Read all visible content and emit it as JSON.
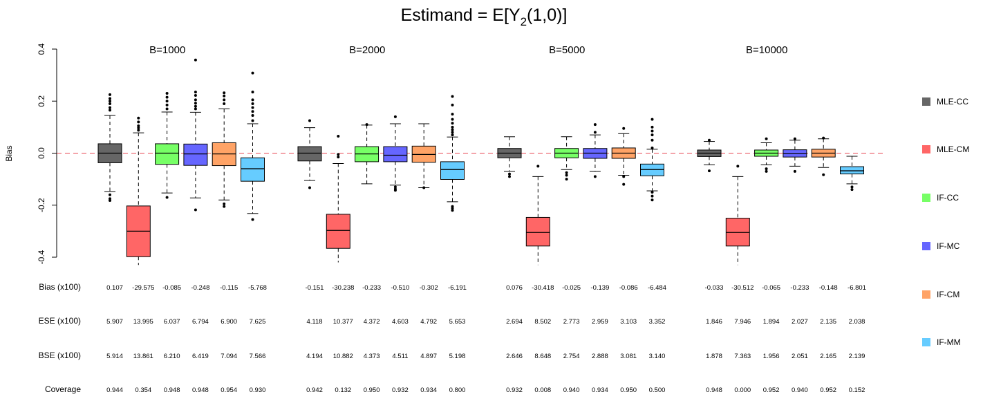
{
  "chart_data": {
    "type": "box",
    "title_main": "Estimand = E[Y",
    "title_sub": "2",
    "title_end": "(1,0)]",
    "ylabel": "Bias",
    "ylim": [
      -0.4,
      0.4
    ],
    "yticks": [
      "0.4",
      "0.2",
      "0.0",
      "-0.2",
      "-0.4"
    ],
    "reference_line": 0.0,
    "legend_position": "right",
    "methods": [
      {
        "name": "MLE-CC",
        "color": "#666666"
      },
      {
        "name": "MLE-CM",
        "color": "#FF6666"
      },
      {
        "name": "IF-CC",
        "color": "#77FF66"
      },
      {
        "name": "IF-MC",
        "color": "#6666FF"
      },
      {
        "name": "IF-CM",
        "color": "#FFA366"
      },
      {
        "name": "IF-MM",
        "color": "#66CCFF"
      }
    ],
    "groups": [
      {
        "label": "B=1000",
        "boxes": [
          {
            "q1": -0.037,
            "median": 0.0,
            "q3": 0.036,
            "wlo": -0.148,
            "whi": 0.145,
            "outliers": [
              0.165,
              0.175,
              0.19,
              0.2,
              0.21,
              0.225,
              -0.16,
              -0.175,
              -0.182
            ]
          },
          {
            "q1": -0.398,
            "median": -0.3,
            "q3": -0.203,
            "wlo": -0.43,
            "whi": 0.078,
            "outliers": [
              0.088,
              0.097,
              0.105,
              0.12,
              0.135
            ]
          },
          {
            "q1": -0.043,
            "median": 0.0,
            "q3": 0.036,
            "wlo": -0.153,
            "whi": 0.158,
            "outliers": [
              0.17,
              0.185,
              0.2,
              0.215,
              0.23,
              -0.17
            ]
          },
          {
            "q1": -0.047,
            "median": -0.003,
            "q3": 0.035,
            "wlo": -0.172,
            "whi": 0.157,
            "outliers": [
              0.17,
              0.18,
              0.192,
              0.205,
              0.222,
              0.235,
              0.358,
              -0.218
            ]
          },
          {
            "q1": -0.048,
            "median": -0.003,
            "q3": 0.04,
            "wlo": -0.18,
            "whi": 0.17,
            "outliers": [
              0.19,
              0.205,
              0.22,
              0.232,
              -0.195,
              -0.205
            ]
          },
          {
            "q1": -0.108,
            "median": -0.06,
            "q3": -0.018,
            "wlo": -0.232,
            "whi": 0.113,
            "outliers": [
              0.125,
              0.145,
              0.16,
              0.175,
              0.19,
              0.205,
              0.235,
              0.308,
              -0.255
            ]
          }
        ],
        "stats": {
          "bias": [
            "0.107",
            "-29.575",
            "-0.085",
            "-0.248",
            "-0.115",
            "-5.768"
          ],
          "ese": [
            "5.907",
            "13.995",
            "6.037",
            "6.794",
            "6.900",
            "7.625"
          ],
          "bse": [
            "5.914",
            "13.861",
            "6.210",
            "6.419",
            "7.094",
            "7.566"
          ],
          "coverage": [
            "0.944",
            "0.354",
            "0.948",
            "0.948",
            "0.954",
            "0.930"
          ]
        }
      },
      {
        "label": "B=2000",
        "boxes": [
          {
            "q1": -0.03,
            "median": 0.0,
            "q3": 0.025,
            "wlo": -0.105,
            "whi": 0.098,
            "outliers": [
              0.125,
              -0.133
            ]
          },
          {
            "q1": -0.366,
            "median": -0.297,
            "q3": -0.235,
            "wlo": -0.42,
            "whi": -0.04,
            "outliers": [
              -0.015,
              -0.005,
              0.065
            ]
          },
          {
            "q1": -0.033,
            "median": -0.003,
            "q3": 0.025,
            "wlo": -0.118,
            "whi": 0.108,
            "outliers": [
              0.11
            ]
          },
          {
            "q1": -0.033,
            "median": -0.008,
            "q3": 0.025,
            "wlo": -0.123,
            "whi": 0.113,
            "outliers": [
              0.14,
              -0.13,
              -0.138,
              -0.143
            ]
          },
          {
            "q1": -0.035,
            "median": -0.005,
            "q3": 0.027,
            "wlo": -0.133,
            "whi": 0.113,
            "outliers": [
              -0.133
            ]
          },
          {
            "q1": -0.101,
            "median": -0.063,
            "q3": -0.033,
            "wlo": -0.187,
            "whi": 0.062,
            "outliers": [
              0.07,
              0.08,
              0.09,
              0.1,
              0.115,
              0.13,
              0.15,
              0.185,
              0.218,
              -0.205,
              -0.212,
              -0.22
            ]
          }
        ],
        "stats": {
          "bias": [
            "-0.151",
            "-30.238",
            "-0.233",
            "-0.510",
            "-0.302",
            "-6.191"
          ],
          "ese": [
            "4.118",
            "10.377",
            "4.372",
            "4.603",
            "4.792",
            "5.653"
          ],
          "bse": [
            "4.194",
            "10.882",
            "4.373",
            "4.511",
            "4.897",
            "5.198"
          ],
          "coverage": [
            "0.942",
            "0.132",
            "0.950",
            "0.932",
            "0.934",
            "0.800"
          ]
        }
      },
      {
        "label": "B=5000",
        "boxes": [
          {
            "q1": -0.018,
            "median": 0.0,
            "q3": 0.018,
            "wlo": -0.07,
            "whi": 0.063,
            "outliers": [
              -0.08,
              -0.09
            ]
          },
          {
            "q1": -0.357,
            "median": -0.305,
            "q3": -0.247,
            "wlo": -0.43,
            "whi": -0.09,
            "outliers": [
              -0.05
            ]
          },
          {
            "q1": -0.018,
            "median": 0.0,
            "q3": 0.018,
            "wlo": -0.063,
            "whi": 0.063,
            "outliers": [
              -0.075,
              -0.085,
              -0.1
            ]
          },
          {
            "q1": -0.02,
            "median": 0.0,
            "q3": 0.018,
            "wlo": -0.07,
            "whi": 0.07,
            "outliers": [
              0.08,
              0.11,
              -0.09
            ]
          },
          {
            "q1": -0.02,
            "median": 0.0,
            "q3": 0.02,
            "wlo": -0.085,
            "whi": 0.075,
            "outliers": [
              0.095,
              -0.09,
              -0.12
            ]
          },
          {
            "q1": -0.087,
            "median": -0.063,
            "q3": -0.042,
            "wlo": -0.145,
            "whi": 0.015,
            "outliers": [
              0.02,
              0.05,
              0.07,
              0.085,
              0.1,
              0.13,
              -0.15,
              -0.165,
              -0.18
            ]
          }
        ],
        "stats": {
          "bias": [
            "0.076",
            "-30.418",
            "-0.025",
            "-0.139",
            "-0.086",
            "-6.484"
          ],
          "ese": [
            "2.694",
            "8.502",
            "2.773",
            "2.959",
            "3.103",
            "3.352"
          ],
          "bse": [
            "2.646",
            "8.648",
            "2.754",
            "2.888",
            "3.081",
            "3.140"
          ],
          "coverage": [
            "0.932",
            "0.008",
            "0.940",
            "0.934",
            "0.950",
            "0.500"
          ]
        }
      },
      {
        "label": "B=10000",
        "boxes": [
          {
            "q1": -0.013,
            "median": 0.0,
            "q3": 0.012,
            "wlo": -0.045,
            "whi": 0.045,
            "outliers": [
              0.05,
              -0.068
            ]
          },
          {
            "q1": -0.357,
            "median": -0.305,
            "q3": -0.25,
            "wlo": -0.43,
            "whi": -0.09,
            "outliers": [
              -0.05
            ]
          },
          {
            "q1": -0.012,
            "median": 0.0,
            "q3": 0.012,
            "wlo": -0.045,
            "whi": 0.04,
            "outliers": [
              0.055,
              -0.06,
              -0.07
            ]
          },
          {
            "q1": -0.015,
            "median": -0.002,
            "q3": 0.013,
            "wlo": -0.05,
            "whi": 0.05,
            "outliers": [
              0.055,
              -0.07
            ]
          },
          {
            "q1": -0.015,
            "median": 0.0,
            "q3": 0.015,
            "wlo": -0.055,
            "whi": 0.055,
            "outliers": [
              0.058,
              -0.083
            ]
          },
          {
            "q1": -0.08,
            "median": -0.068,
            "q3": -0.052,
            "wlo": -0.118,
            "whi": -0.012,
            "outliers": [
              -0.13,
              -0.14
            ]
          }
        ],
        "stats": {
          "bias": [
            "-0.033",
            "-30.512",
            "-0.065",
            "-0.233",
            "-0.148",
            "-6.801"
          ],
          "ese": [
            "1.846",
            "7.946",
            "1.894",
            "2.027",
            "2.135",
            "2.038"
          ],
          "bse": [
            "1.878",
            "7.363",
            "1.956",
            "2.051",
            "2.165",
            "2.139"
          ],
          "coverage": [
            "0.948",
            "0.000",
            "0.952",
            "0.940",
            "0.952",
            "0.152"
          ]
        }
      }
    ],
    "stat_rows": [
      {
        "key": "bias",
        "label": "Bias (x100)"
      },
      {
        "key": "ese",
        "label": "ESE (x100)"
      },
      {
        "key": "bse",
        "label": "BSE (x100)"
      },
      {
        "key": "coverage",
        "label": "Coverage"
      }
    ]
  }
}
